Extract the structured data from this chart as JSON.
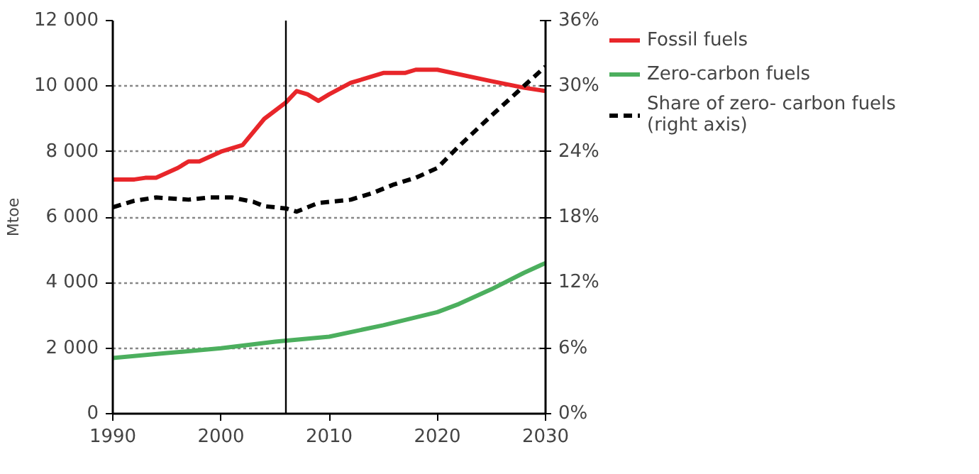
{
  "chart_data": {
    "type": "line",
    "ylabel": "Mtoe",
    "xlim": [
      1990,
      2030
    ],
    "xticks": [
      1990,
      2000,
      2010,
      2020,
      2030
    ],
    "ylim": [
      0,
      12000
    ],
    "yticks": [
      {
        "value": 0,
        "label": "0"
      },
      {
        "value": 2000,
        "label": "2 000"
      },
      {
        "value": 4000,
        "label": "4 000"
      },
      {
        "value": 6000,
        "label": "6 000"
      },
      {
        "value": 8000,
        "label": "8 000"
      },
      {
        "value": 10000,
        "label": "10 000"
      },
      {
        "value": 12000,
        "label": "12 000"
      }
    ],
    "y2lim": [
      0,
      36
    ],
    "y2ticks": [
      {
        "value": 0,
        "label": "0%"
      },
      {
        "value": 6,
        "label": "6%"
      },
      {
        "value": 12,
        "label": "12%"
      },
      {
        "value": 18,
        "label": "18%"
      },
      {
        "value": 24,
        "label": "24%"
      },
      {
        "value": 30,
        "label": "30%"
      },
      {
        "value": 36,
        "label": "36%"
      }
    ],
    "grid": "y",
    "legend": "top right",
    "ref_lines": [
      {
        "axis": "x",
        "value": 2006,
        "color": "#000000"
      }
    ],
    "series": [
      {
        "name": "Fossil fuels",
        "color": "#e8262a",
        "line_style": "solid",
        "x": [
          1990,
          1992,
          1993,
          1994,
          1996,
          1997,
          1998,
          2000,
          2002,
          2004,
          2006,
          2007,
          2008,
          2009,
          2010,
          2012,
          2015,
          2017,
          2018,
          2020,
          2025,
          2028,
          2030
        ],
        "values": [
          7150,
          7150,
          7200,
          7200,
          7500,
          7700,
          7700,
          8000,
          8200,
          9000,
          9500,
          9850,
          9750,
          9550,
          9750,
          10100,
          10400,
          10400,
          10500,
          10500,
          10150,
          9950,
          9850
        ]
      },
      {
        "name": "Zero-carbon fuels",
        "color": "#4caf5e",
        "line_style": "solid",
        "x": [
          1990,
          1995,
          2000,
          2005,
          2010,
          2015,
          2020,
          2022,
          2025,
          2028,
          2030
        ],
        "values": [
          1700,
          1850,
          2000,
          2200,
          2350,
          2700,
          3100,
          3350,
          3800,
          4300,
          4600
        ]
      },
      {
        "name": "Share of zero- carbon fuels (right axis)",
        "color": "#000000",
        "line_style": "dashed",
        "axis": "y2",
        "x": [
          1990,
          1992,
          1994,
          1997,
          1999,
          2001,
          2003,
          2004,
          2006,
          2007,
          2009,
          2012,
          2014,
          2016,
          2018,
          2020,
          2022,
          2025,
          2028,
          2030
        ],
        "values": [
          18.9,
          19.5,
          19.8,
          19.6,
          19.8,
          19.8,
          19.4,
          19.0,
          18.8,
          18.5,
          19.3,
          19.6,
          20.2,
          21.0,
          21.6,
          22.5,
          24.5,
          27.3,
          30.0,
          31.8
        ]
      }
    ]
  }
}
